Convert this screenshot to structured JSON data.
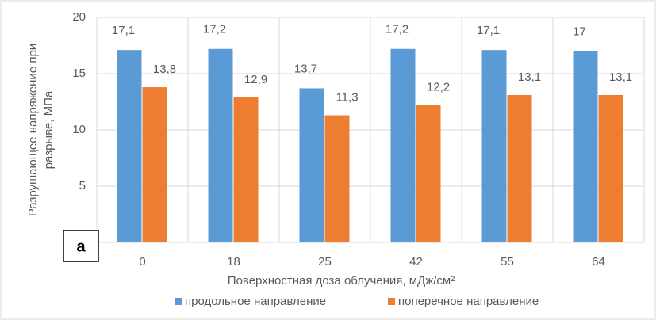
{
  "chart_data": {
    "type": "bar",
    "y_label": [
      "Разрушающее напряжение при",
      "разрыве, МПа"
    ],
    "x_label": "Поверхностная доза облучения, мДж/см²",
    "annotation": "а",
    "categories": [
      "0",
      "18",
      "25",
      "42",
      "55",
      "64"
    ],
    "series": [
      {
        "name": "продольное направление",
        "color": "#5b9bd5",
        "values": [
          17.1,
          17.2,
          13.7,
          17.2,
          17.1,
          17
        ],
        "value_labels": [
          "17,1",
          "17,2",
          "13,7",
          "17,2",
          "17,1",
          "17"
        ]
      },
      {
        "name": "поперечное направление",
        "color": "#ed7d31",
        "values": [
          13.8,
          12.9,
          11.3,
          12.2,
          13.1,
          13.1
        ],
        "value_labels": [
          "13,8",
          "12,9",
          "11,3",
          "12,2",
          "13,1",
          "13,1"
        ]
      }
    ],
    "ylim": [
      0,
      20
    ],
    "yticks": [
      0,
      5,
      10,
      15,
      20
    ],
    "grid": true,
    "legend": "bottom"
  }
}
